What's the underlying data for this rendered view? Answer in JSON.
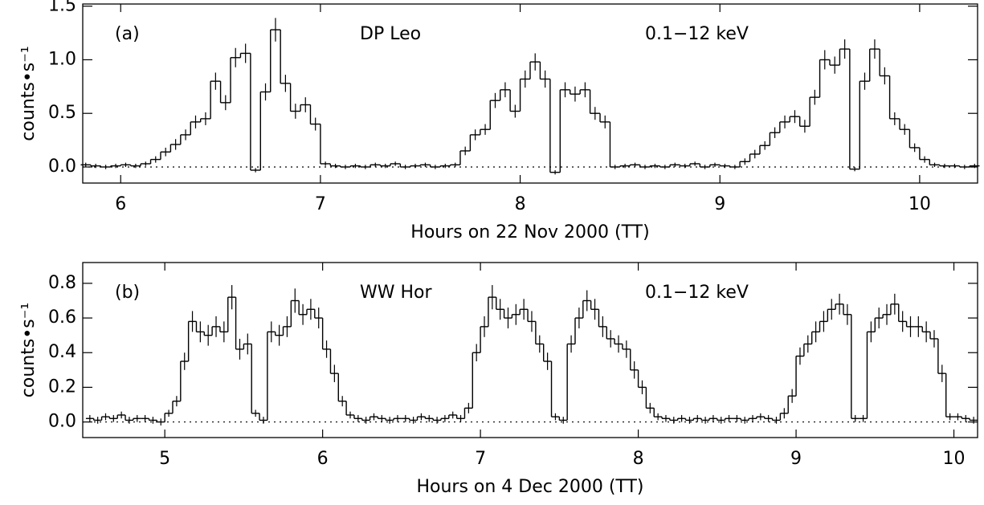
{
  "chart_data": [
    {
      "type": "histogram",
      "panel_label": "(a)",
      "annotations": [
        "DP Leo",
        "0.1−12 keV"
      ],
      "xlabel": "Hours on 22 Nov 2000 (TT)",
      "ylabel": "counts•s⁻¹",
      "xlim": [
        5.81,
        10.29
      ],
      "ylim": [
        -0.15,
        1.52
      ],
      "xticks": [
        6,
        7,
        8,
        9,
        10
      ],
      "yticks": [
        {
          "value": 0,
          "label": "0.0"
        },
        0.5,
        {
          "value": 1,
          "label": "1.0"
        },
        1.5
      ],
      "color": "#000000",
      "bins": [
        5.8,
        5.85,
        5.9,
        5.95,
        6.0,
        6.05,
        6.1,
        6.15,
        6.2,
        6.25,
        6.3,
        6.35,
        6.4,
        6.45,
        6.5,
        6.55,
        6.6,
        6.65,
        6.7,
        6.75,
        6.8,
        6.85,
        6.9,
        6.95,
        7.0,
        7.05,
        7.1,
        7.15,
        7.2,
        7.25,
        7.3,
        7.35,
        7.4,
        7.45,
        7.5,
        7.55,
        7.6,
        7.65,
        7.7,
        7.75,
        7.8,
        7.85,
        7.9,
        7.95,
        8.0,
        8.05,
        8.1,
        8.15,
        8.2,
        8.25,
        8.3,
        8.35,
        8.4,
        8.45,
        8.5,
        8.55,
        8.6,
        8.65,
        8.7,
        8.75,
        8.8,
        8.85,
        8.9,
        8.95,
        9.0,
        9.05,
        9.1,
        9.15,
        9.2,
        9.25,
        9.3,
        9.35,
        9.4,
        9.45,
        9.5,
        9.55,
        9.6,
        9.65,
        9.7,
        9.75,
        9.8,
        9.85,
        9.9,
        9.95,
        10.0,
        10.05,
        10.1,
        10.15,
        10.2,
        10.25,
        10.3
      ],
      "values": [
        0.02,
        0.01,
        0.0,
        0.01,
        0.02,
        0.01,
        0.03,
        0.07,
        0.14,
        0.21,
        0.3,
        0.42,
        0.45,
        0.8,
        0.6,
        1.02,
        1.06,
        -0.03,
        0.7,
        1.28,
        0.78,
        0.52,
        0.58,
        0.4,
        0.03,
        0.01,
        0.0,
        0.01,
        0.0,
        0.02,
        0.01,
        0.03,
        0.0,
        0.01,
        0.02,
        0.0,
        0.01,
        0.02,
        0.15,
        0.3,
        0.35,
        0.62,
        0.72,
        0.52,
        0.82,
        0.98,
        0.82,
        -0.05,
        0.72,
        0.68,
        0.72,
        0.5,
        0.42,
        0.0,
        0.01,
        0.02,
        0.0,
        0.01,
        0.0,
        0.02,
        0.01,
        0.03,
        0.0,
        0.02,
        0.01,
        0.0,
        0.05,
        0.12,
        0.2,
        0.32,
        0.42,
        0.47,
        0.38,
        0.65,
        1.0,
        0.95,
        1.1,
        -0.02,
        0.8,
        1.1,
        0.85,
        0.45,
        0.35,
        0.18,
        0.07,
        0.02,
        0.01,
        0.01,
        0.0,
        0.01
      ],
      "errors": [
        0.02,
        0.02,
        0.02,
        0.02,
        0.02,
        0.02,
        0.02,
        0.03,
        0.04,
        0.05,
        0.05,
        0.06,
        0.06,
        0.08,
        0.07,
        0.09,
        0.09,
        0.02,
        0.08,
        0.11,
        0.08,
        0.07,
        0.07,
        0.06,
        0.02,
        0.02,
        0.02,
        0.02,
        0.02,
        0.02,
        0.02,
        0.02,
        0.02,
        0.02,
        0.02,
        0.02,
        0.02,
        0.02,
        0.04,
        0.05,
        0.05,
        0.07,
        0.07,
        0.06,
        0.08,
        0.08,
        0.08,
        0.02,
        0.07,
        0.07,
        0.07,
        0.06,
        0.06,
        0.02,
        0.02,
        0.02,
        0.02,
        0.02,
        0.02,
        0.02,
        0.02,
        0.02,
        0.02,
        0.02,
        0.02,
        0.02,
        0.03,
        0.04,
        0.04,
        0.05,
        0.06,
        0.06,
        0.06,
        0.07,
        0.09,
        0.08,
        0.09,
        0.02,
        0.08,
        0.09,
        0.08,
        0.06,
        0.05,
        0.04,
        0.03,
        0.02,
        0.02,
        0.02,
        0.02,
        0.02
      ]
    },
    {
      "type": "histogram",
      "panel_label": "(b)",
      "annotations": [
        "WW Hor",
        "0.1−12 keV"
      ],
      "xlabel": "Hours on 4 Dec 2000 (TT)",
      "ylabel": "counts•s⁻¹",
      "xlim": [
        4.48,
        10.15
      ],
      "ylim": [
        -0.09,
        0.92
      ],
      "xticks": [
        5,
        6,
        7,
        8,
        9,
        10
      ],
      "yticks": [
        {
          "value": 0,
          "label": "0.0"
        },
        0.2,
        0.4,
        0.6,
        0.8
      ],
      "color": "#000000",
      "bins": [
        4.5,
        4.55,
        4.6,
        4.65,
        4.7,
        4.75,
        4.8,
        4.85,
        4.9,
        4.95,
        5.0,
        5.05,
        5.1,
        5.15,
        5.2,
        5.25,
        5.3,
        5.35,
        5.4,
        5.45,
        5.5,
        5.55,
        5.6,
        5.65,
        5.7,
        5.75,
        5.8,
        5.85,
        5.9,
        5.95,
        6.0,
        6.05,
        6.1,
        6.15,
        6.2,
        6.25,
        6.3,
        6.35,
        6.4,
        6.45,
        6.5,
        6.55,
        6.6,
        6.65,
        6.7,
        6.75,
        6.8,
        6.85,
        6.9,
        6.95,
        7.0,
        7.05,
        7.1,
        7.15,
        7.2,
        7.25,
        7.3,
        7.35,
        7.4,
        7.45,
        7.5,
        7.55,
        7.6,
        7.65,
        7.7,
        7.75,
        7.8,
        7.85,
        7.9,
        7.95,
        8.0,
        8.05,
        8.1,
        8.15,
        8.2,
        8.25,
        8.3,
        8.35,
        8.4,
        8.45,
        8.5,
        8.55,
        8.6,
        8.65,
        8.7,
        8.75,
        8.8,
        8.85,
        8.9,
        8.95,
        9.0,
        9.05,
        9.1,
        9.15,
        9.2,
        9.25,
        9.3,
        9.35,
        9.4,
        9.45,
        9.5,
        9.55,
        9.6,
        9.65,
        9.7,
        9.75,
        9.8,
        9.85,
        9.9,
        9.95,
        10.0,
        10.05,
        10.1,
        10.15
      ],
      "values": [
        0.02,
        0.01,
        0.03,
        0.02,
        0.04,
        0.01,
        0.02,
        0.02,
        0.01,
        0.0,
        0.05,
        0.12,
        0.35,
        0.58,
        0.52,
        0.5,
        0.55,
        0.52,
        0.72,
        0.42,
        0.45,
        0.05,
        0.01,
        0.52,
        0.5,
        0.55,
        0.7,
        0.62,
        0.65,
        0.6,
        0.42,
        0.28,
        0.12,
        0.04,
        0.02,
        0.01,
        0.03,
        0.02,
        0.01,
        0.02,
        0.02,
        0.01,
        0.03,
        0.02,
        0.01,
        0.02,
        0.04,
        0.02,
        0.08,
        0.4,
        0.55,
        0.72,
        0.65,
        0.6,
        0.62,
        0.65,
        0.58,
        0.45,
        0.35,
        0.03,
        0.01,
        0.45,
        0.6,
        0.7,
        0.65,
        0.55,
        0.48,
        0.45,
        0.42,
        0.3,
        0.2,
        0.08,
        0.03,
        0.02,
        0.01,
        0.02,
        0.01,
        0.02,
        0.01,
        0.02,
        0.01,
        0.02,
        0.02,
        0.01,
        0.02,
        0.03,
        0.02,
        0.01,
        0.05,
        0.15,
        0.38,
        0.45,
        0.52,
        0.58,
        0.65,
        0.68,
        0.62,
        0.02,
        0.02,
        0.52,
        0.6,
        0.62,
        0.68,
        0.58,
        0.55,
        0.55,
        0.52,
        0.48,
        0.28,
        0.03,
        0.03,
        0.02,
        0.01
      ],
      "errors": [
        0.02,
        0.02,
        0.02,
        0.02,
        0.02,
        0.02,
        0.02,
        0.02,
        0.02,
        0.02,
        0.02,
        0.03,
        0.05,
        0.06,
        0.06,
        0.06,
        0.06,
        0.06,
        0.07,
        0.06,
        0.06,
        0.02,
        0.02,
        0.06,
        0.06,
        0.06,
        0.07,
        0.06,
        0.06,
        0.06,
        0.05,
        0.05,
        0.03,
        0.02,
        0.02,
        0.02,
        0.02,
        0.02,
        0.02,
        0.02,
        0.02,
        0.02,
        0.02,
        0.02,
        0.02,
        0.02,
        0.02,
        0.02,
        0.03,
        0.05,
        0.06,
        0.07,
        0.06,
        0.06,
        0.06,
        0.06,
        0.06,
        0.05,
        0.05,
        0.02,
        0.02,
        0.05,
        0.06,
        0.06,
        0.06,
        0.06,
        0.05,
        0.05,
        0.05,
        0.05,
        0.04,
        0.03,
        0.02,
        0.02,
        0.02,
        0.02,
        0.02,
        0.02,
        0.02,
        0.02,
        0.02,
        0.02,
        0.02,
        0.02,
        0.02,
        0.02,
        0.02,
        0.02,
        0.03,
        0.04,
        0.05,
        0.05,
        0.06,
        0.06,
        0.06,
        0.06,
        0.06,
        0.02,
        0.02,
        0.06,
        0.06,
        0.06,
        0.06,
        0.06,
        0.06,
        0.06,
        0.06,
        0.05,
        0.05,
        0.02,
        0.02,
        0.02,
        0.02
      ]
    }
  ]
}
